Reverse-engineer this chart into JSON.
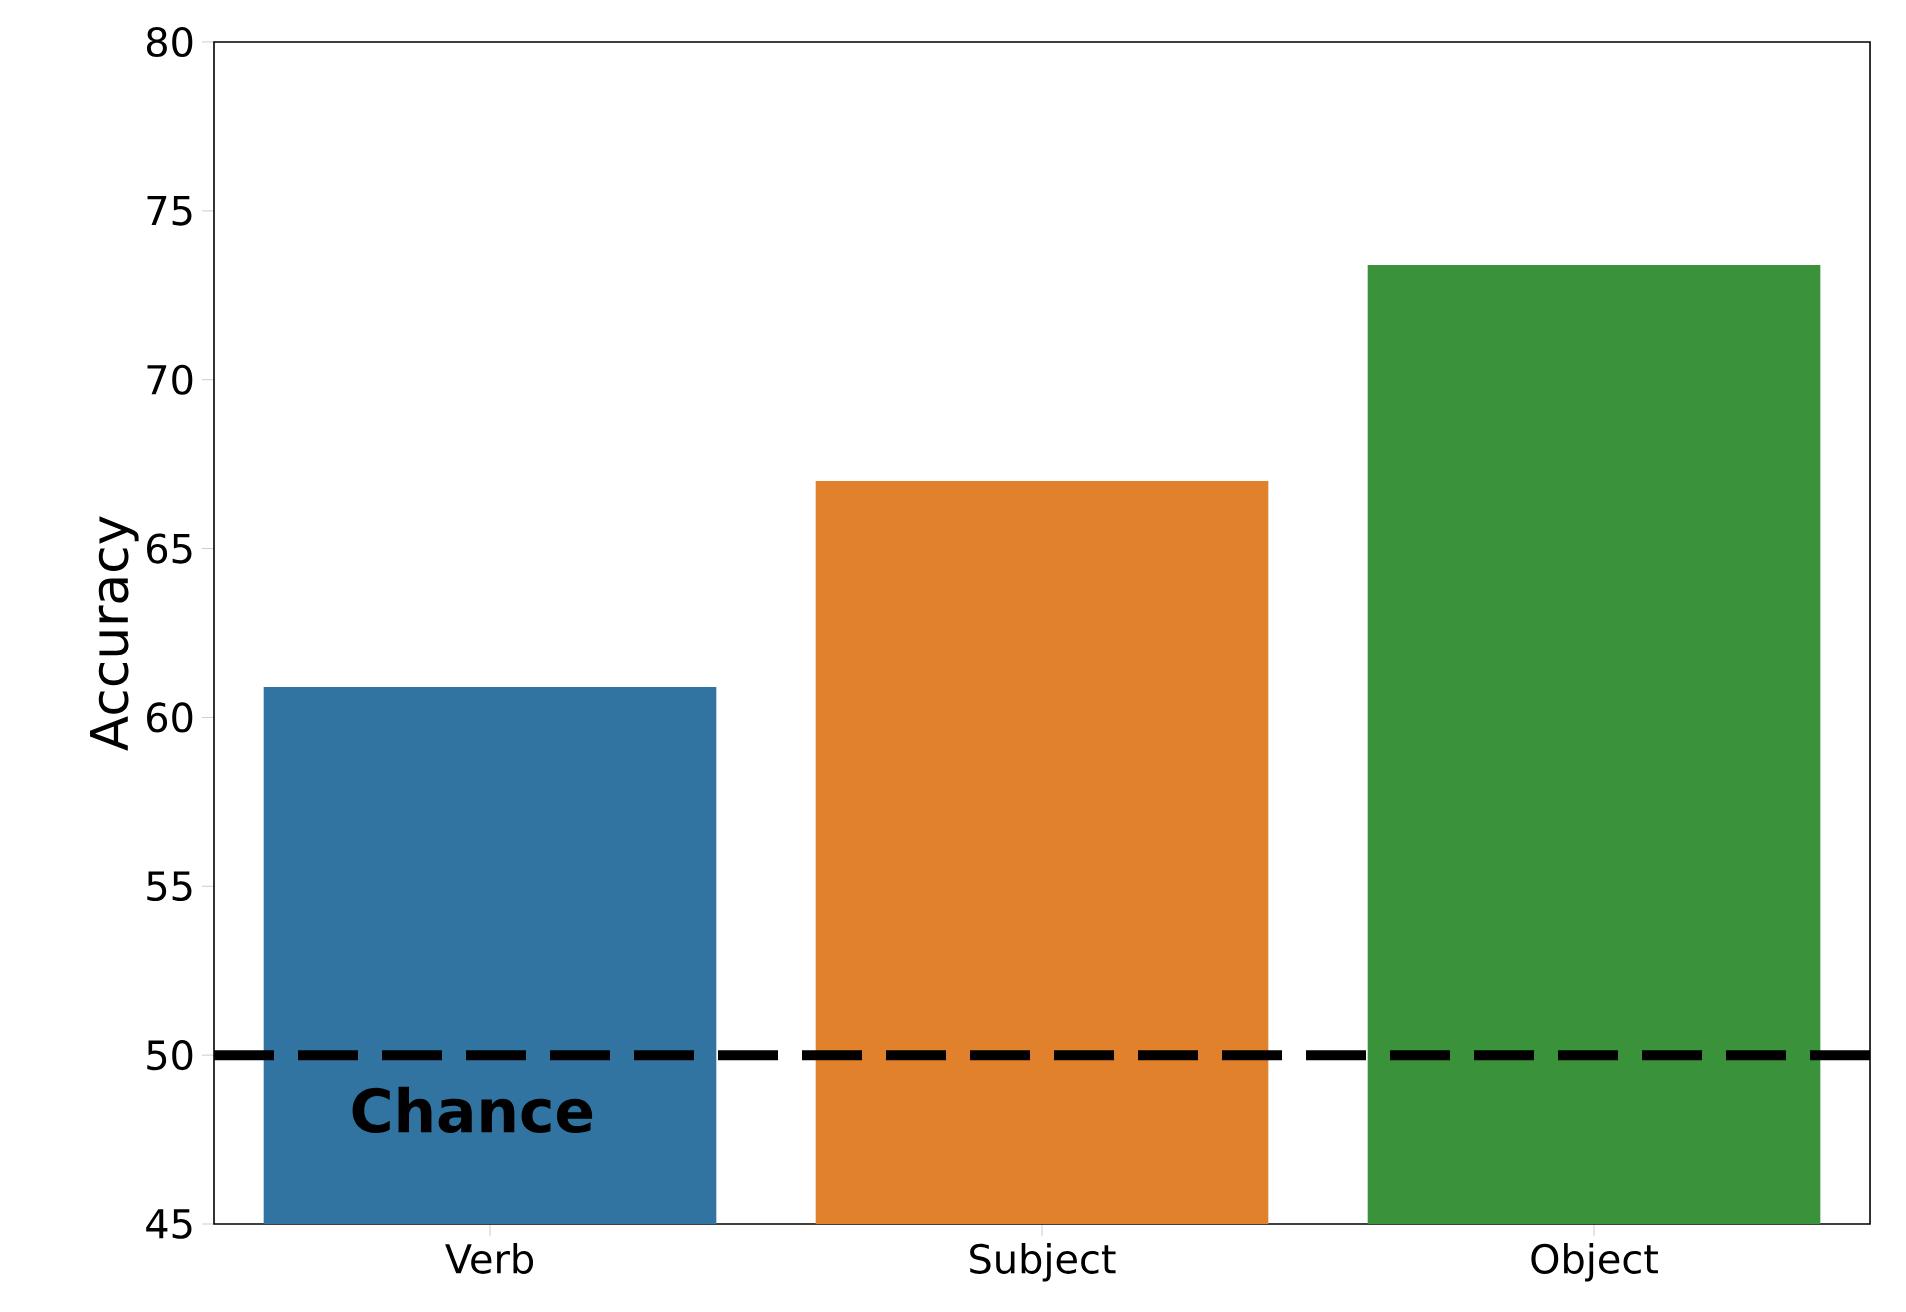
{
  "chart_data": {
    "type": "bar",
    "ylabel": "Accuracy",
    "categories": [
      "Verb",
      "Subject",
      "Object"
    ],
    "values": [
      60.9,
      67.0,
      73.4
    ],
    "colors": [
      "#3274a1",
      "#e1812c",
      "#3a923a"
    ],
    "ylim": [
      45,
      80
    ],
    "yticks": [
      45,
      50,
      55,
      60,
      65,
      70,
      75,
      80
    ],
    "ref_lines": [
      {
        "axis": "y",
        "value": 50,
        "label": "Chance",
        "color": "#000000",
        "line_style": "dashed"
      }
    ]
  }
}
